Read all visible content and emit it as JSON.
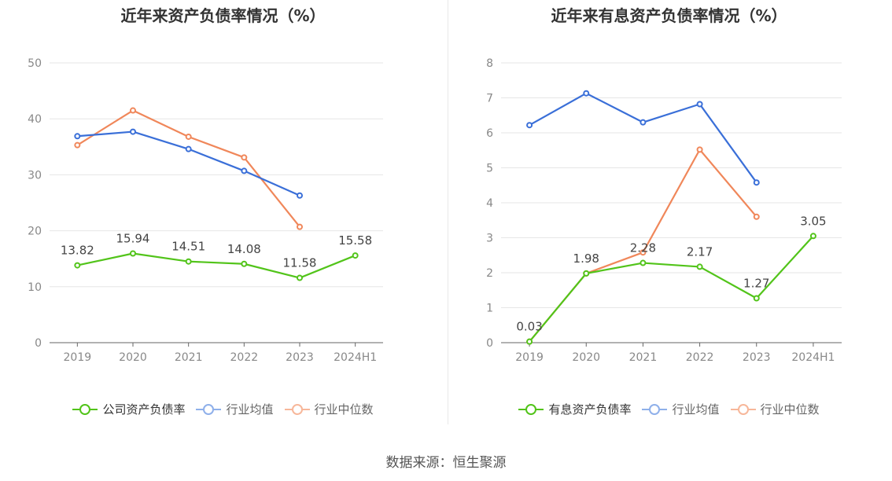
{
  "source": "数据来源：恒生聚源",
  "colors": {
    "company": "#52c41a",
    "avg": "#3a6fd8",
    "median": "#f0875a",
    "grid": "#e6e6e6",
    "axis": "#666666"
  },
  "chart_data": [
    {
      "type": "line",
      "title": "近年来资产负债率情况（%）",
      "categories": [
        "2019",
        "2020",
        "2021",
        "2022",
        "2023",
        "2024H1"
      ],
      "ylim": [
        0,
        50
      ],
      "yticks": [
        "0",
        "10",
        "20",
        "30",
        "40",
        "50"
      ],
      "grid": true,
      "legend_position": "bottom",
      "series": [
        {
          "name": "公司资产负债率",
          "key": "company",
          "values": [
            13.82,
            15.94,
            14.51,
            14.08,
            11.58,
            15.58
          ],
          "labels": [
            "13.82",
            "15.94",
            "14.51",
            "14.08",
            "11.58",
            "15.58"
          ]
        },
        {
          "name": "行业均值",
          "key": "avg",
          "values": [
            36.9,
            37.7,
            34.6,
            30.7,
            26.3,
            null
          ]
        },
        {
          "name": "行业中位数",
          "key": "median",
          "values": [
            35.3,
            41.5,
            36.8,
            33.1,
            20.7,
            null
          ]
        }
      ]
    },
    {
      "type": "line",
      "title": "近年来有息资产负债率情况（%）",
      "categories": [
        "2019",
        "2020",
        "2021",
        "2022",
        "2023",
        "2024H1"
      ],
      "ylim": [
        0,
        8
      ],
      "yticks": [
        "0",
        "1",
        "2",
        "3",
        "4",
        "5",
        "6",
        "7",
        "8"
      ],
      "grid": true,
      "legend_position": "bottom",
      "series": [
        {
          "name": "有息资产负债率",
          "key": "company",
          "values": [
            0.03,
            1.98,
            2.28,
            2.17,
            1.27,
            3.05
          ],
          "labels": [
            "0.03",
            "1.98",
            "2.28",
            "2.17",
            "1.27",
            "3.05"
          ]
        },
        {
          "name": "行业均值",
          "key": "avg",
          "values": [
            6.22,
            7.13,
            6.3,
            6.82,
            4.58,
            null
          ]
        },
        {
          "name": "行业中位数",
          "key": "median",
          "values": [
            0.03,
            1.98,
            2.58,
            5.52,
            3.6,
            null
          ]
        }
      ]
    }
  ]
}
